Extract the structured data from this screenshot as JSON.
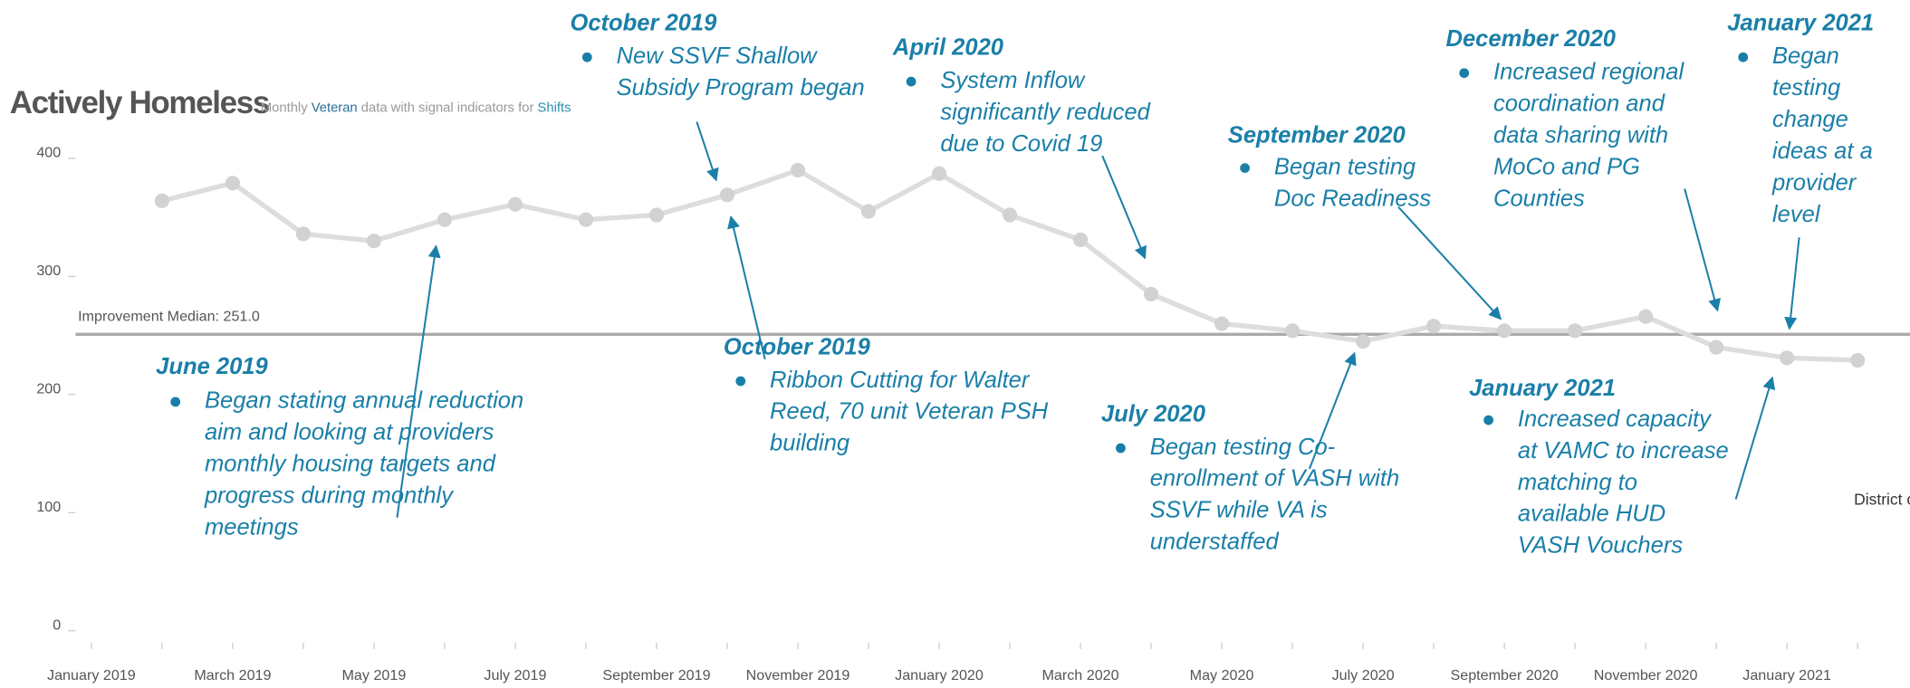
{
  "chart_data": {
    "type": "line",
    "title": "Actively Homeless",
    "subtitle_parts": [
      "Monthly ",
      "Veteran",
      " data with signal indicators for ",
      "Shifts"
    ],
    "categories": [
      "January 2019",
      null,
      "March 2019",
      null,
      "May 2019",
      null,
      "July 2019",
      null,
      "September 2019",
      null,
      "November 2019",
      null,
      "January 2020",
      null,
      "March 2020",
      null,
      "May 2020",
      null,
      "July 2020",
      null,
      "September 2020",
      null,
      "November 2020",
      null,
      "January 2021",
      null
    ],
    "series": [
      {
        "name": "District of Columbia",
        "color": "#dddddd",
        "values": [
          null,
          364,
          379,
          336,
          330,
          348,
          361,
          348,
          352,
          369,
          390,
          355,
          387,
          352,
          331,
          285,
          260,
          254,
          245,
          258,
          254,
          254,
          266,
          240,
          231,
          229
        ]
      }
    ],
    "ylim": [
      0,
      400
    ],
    "yticks": [
      0,
      100,
      200,
      300,
      400
    ],
    "reference_line": {
      "value": 251,
      "label": "Improvement Median: 251.0",
      "color": "#aaaaaa"
    },
    "annotations": [
      {
        "date": "October 2019",
        "lines": [
          "New SSVF Shallow",
          "Subsidy Program began"
        ]
      },
      {
        "date": "April 2020",
        "lines": [
          "System Inflow",
          "significantly reduced",
          "due to Covid 19"
        ]
      },
      {
        "date": "September  2020",
        "lines": [
          "Began testing",
          "Doc Readiness"
        ]
      },
      {
        "date": "December 2020",
        "lines": [
          "Increased regional",
          "coordination and",
          "data sharing with",
          "MoCo and PG",
          "Counties"
        ]
      },
      {
        "date": "January 2021",
        "lines": [
          "Began",
          "testing",
          "change",
          "ideas at a",
          "provider",
          "level"
        ]
      },
      {
        "date": "June 2019",
        "lines": [
          "Began stating annual reduction",
          "aim and looking at providers",
          "monthly housing targets and",
          "progress during monthly",
          "meetings"
        ]
      },
      {
        "date": "October 2019",
        "lines": [
          "Ribbon Cutting for Walter",
          "Reed, 70 unit Veteran PSH",
          "building"
        ]
      },
      {
        "date": "July 2020",
        "lines": [
          "Began testing Co-",
          "enrollment of VASH with",
          "SSVF while VA is",
          "understaffed"
        ]
      },
      {
        "date": "January 2021",
        "lines": [
          "Increased capacity",
          "at VAMC to increase",
          "matching to",
          "available HUD",
          "VASH Vouchers"
        ]
      }
    ]
  }
}
